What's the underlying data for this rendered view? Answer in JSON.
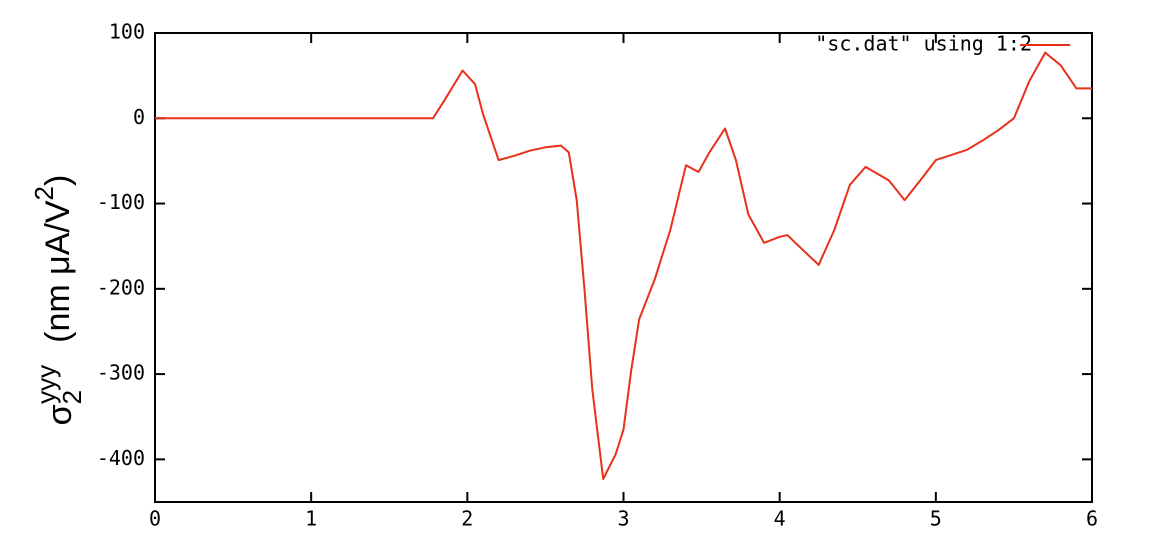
{
  "chart_data": {
    "type": "line",
    "y_label": [
      "σ",
      "2",
      "yyy",
      "(nm μA/V",
      "2",
      ")"
    ],
    "x": [
      0,
      0.5,
      1.0,
      1.5,
      1.78,
      1.85,
      1.97,
      2.05,
      2.1,
      2.2,
      2.3,
      2.4,
      2.5,
      2.6,
      2.65,
      2.7,
      2.75,
      2.8,
      2.87,
      2.95,
      3.0,
      3.05,
      3.1,
      3.2,
      3.3,
      3.4,
      3.48,
      3.55,
      3.65,
      3.72,
      3.8,
      3.9,
      4.0,
      4.05,
      4.1,
      4.25,
      4.35,
      4.45,
      4.55,
      4.7,
      4.8,
      4.9,
      5.0,
      5.1,
      5.2,
      5.3,
      5.4,
      5.5,
      5.6,
      5.7,
      5.8,
      5.9,
      6.0
    ],
    "series": [
      {
        "name": "\"sc.dat\"  using 1:2",
        "color": "#e8301a",
        "values": [
          0,
          0,
          0,
          0,
          0,
          20,
          56,
          40,
          5,
          -49,
          -44,
          -38,
          -34,
          -32,
          -40,
          -96,
          -201,
          -318,
          -423,
          -394,
          -365,
          -295,
          -236,
          -189,
          -131,
          -55,
          -63,
          -40,
          -12,
          -49,
          -113,
          -146,
          -139,
          -137,
          -146,
          -172,
          -131,
          -78,
          -57,
          -73,
          -96,
          -73,
          -49,
          -43,
          -37,
          -26,
          -14,
          0,
          44,
          77,
          62,
          35,
          35
        ]
      }
    ],
    "xlim": [
      0,
      6
    ],
    "xticks": [
      0,
      1,
      2,
      3,
      4,
      5,
      6
    ],
    "ylim": [
      -450,
      100
    ],
    "yticks": [
      -400,
      -300,
      -200,
      -100,
      0,
      100
    ],
    "legend": "top-right"
  }
}
